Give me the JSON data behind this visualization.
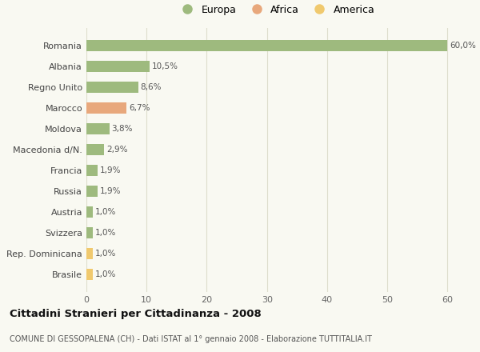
{
  "countries": [
    "Romania",
    "Albania",
    "Regno Unito",
    "Marocco",
    "Moldova",
    "Macedonia d/N.",
    "Francia",
    "Russia",
    "Austria",
    "Svizzera",
    "Rep. Dominicana",
    "Brasile"
  ],
  "values": [
    60.0,
    10.5,
    8.6,
    6.7,
    3.8,
    2.9,
    1.9,
    1.9,
    1.0,
    1.0,
    1.0,
    1.0
  ],
  "labels": [
    "60,0%",
    "10,5%",
    "8,6%",
    "6,7%",
    "3,8%",
    "2,9%",
    "1,9%",
    "1,9%",
    "1,0%",
    "1,0%",
    "1,0%",
    "1,0%"
  ],
  "categories": [
    "Europa",
    "Europa",
    "Europa",
    "Africa",
    "Europa",
    "Europa",
    "Europa",
    "Europa",
    "Europa",
    "Europa",
    "America",
    "America"
  ],
  "colors": {
    "Europa": "#9eba7e",
    "Africa": "#e8a87c",
    "America": "#f0c96e"
  },
  "legend": [
    "Europa",
    "Africa",
    "America"
  ],
  "xlim": [
    0,
    63
  ],
  "xticks": [
    0,
    10,
    20,
    30,
    40,
    50,
    60
  ],
  "title": "Cittadini Stranieri per Cittadinanza - 2008",
  "subtitle": "COMUNE DI GESSOPALENA (CH) - Dati ISTAT al 1° gennaio 2008 - Elaborazione TUTTITALIA.IT",
  "bg_color": "#f9f9f2",
  "grid_color": "#ddddcc",
  "bar_height": 0.55
}
